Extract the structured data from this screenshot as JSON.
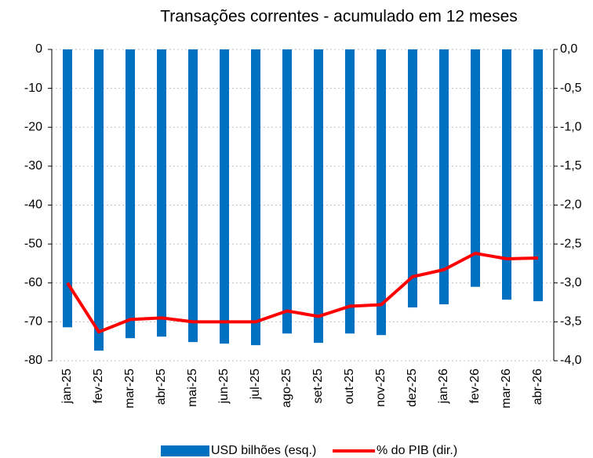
{
  "chart_data": {
    "type": "bar_line",
    "title": "Transações correntes - acumulado em 12 meses",
    "categories": [
      "jan-25",
      "fev-25",
      "mar-25",
      "abr-25",
      "mai-25",
      "jun-25",
      "jul-25",
      "ago-25",
      "set-25",
      "out-25",
      "nov-25",
      "dez-25",
      "jan-26",
      "fev-26",
      "mar-26",
      "abr-26"
    ],
    "series": [
      {
        "name": "USD bilhões (esq.)",
        "color": "#0070c0",
        "type": "bar",
        "axis": "y",
        "values": [
          -71.4,
          -77.4,
          -74.2,
          -73.8,
          -75.2,
          -75.6,
          -76.0,
          -73.0,
          -75.4,
          -73.0,
          -73.4,
          -66.3,
          -65.5,
          -61.0,
          -64.3,
          -64.7
        ]
      },
      {
        "name": "% do PIB (dir.)",
        "color": "#ff0000",
        "type": "line",
        "axis": "y2",
        "values": [
          -3.0,
          -3.63,
          -3.47,
          -3.45,
          -3.5,
          -3.5,
          -3.5,
          -3.36,
          -3.43,
          -3.3,
          -3.28,
          -2.92,
          -2.83,
          -2.62,
          -2.69,
          -2.68
        ]
      }
    ],
    "ylim": [
      -80,
      0
    ],
    "yticks": [
      0,
      -10,
      -20,
      -30,
      -40,
      -50,
      -60,
      -70,
      -80
    ],
    "y2lim": [
      -4,
      0
    ],
    "y2ticks": [
      {
        "value": 0,
        "label": "0,0"
      },
      {
        "value": -0.5,
        "label": "-0,5"
      },
      {
        "value": -1,
        "label": "-1,0"
      },
      {
        "value": -1.5,
        "label": "-1,5"
      },
      {
        "value": -2,
        "label": "-2,0"
      },
      {
        "value": -2.5,
        "label": "-2,5"
      },
      {
        "value": -3,
        "label": "-3,0"
      },
      {
        "value": -3.5,
        "label": "-3,5"
      },
      {
        "value": -4,
        "label": "-4,0"
      }
    ],
    "grid": true
  }
}
